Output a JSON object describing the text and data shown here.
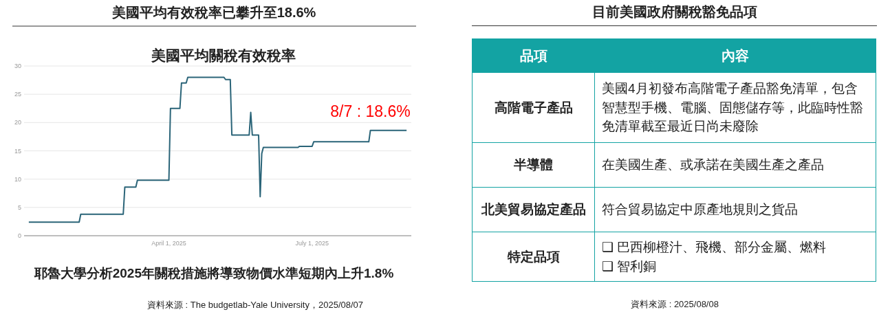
{
  "chart_data": [
    {
      "type": "line",
      "title": "美國平均有效稅率已攀升至18.6%",
      "subtitle": "美國平均關稅有效稅率",
      "x": [
        "2025-01-02",
        "2025-02-03",
        "2025-02-04",
        "2025-03-03",
        "2025-03-04",
        "2025-03-11",
        "2025-03-12",
        "2025-04-01",
        "2025-04-02",
        "2025-04-08",
        "2025-04-09",
        "2025-04-12",
        "2025-04-13",
        "2025-05-06",
        "2025-05-07",
        "2025-05-10",
        "2025-05-11",
        "2025-05-22",
        "2025-05-23",
        "2025-05-24",
        "2025-05-28",
        "2025-05-29",
        "2025-05-30",
        "2025-05-31",
        "2025-06-22",
        "2025-06-23",
        "2025-07-01",
        "2025-07-02",
        "2025-08-06",
        "2025-08-07",
        "2025-08-30"
      ],
      "series": [
        {
          "color": "#2a6478",
          "values": [
            2.4,
            2.4,
            3.8,
            3.8,
            8.6,
            8.6,
            9.8,
            9.8,
            22.5,
            22.5,
            27.0,
            27.0,
            28.0,
            28.0,
            27.6,
            27.6,
            17.8,
            17.8,
            21.8,
            17.8,
            17.8,
            6.9,
            14.5,
            15.6,
            15.6,
            15.8,
            15.8,
            16.6,
            16.6,
            18.6,
            18.6
          ]
        }
      ],
      "xlim": [
        "2024-12-30",
        "2025-09-02"
      ],
      "xticks": [
        {
          "value": "2025-04-01",
          "label": "April 1, 2025"
        },
        {
          "value": "2025-07-01",
          "label": "July 1, 2025"
        }
      ],
      "ylim": [
        0,
        30
      ],
      "yticks": [
        0,
        5,
        10,
        15,
        20,
        25,
        30
      ],
      "grid": "y",
      "marker": "none",
      "line_style": "solid",
      "annotations": [
        {
          "text": "8/7 : 18.6%",
          "x": "2025-08-07",
          "y": 18.6
        },
        "耶魯大學分析2025年關稅措施將導致物價水準短期內上升1.8%",
        "資料來源 : The budgetlab-Yale University，2025/08/07"
      ]
    },
    {
      "type": "other",
      "title": "目前美國政府關稅豁免品項",
      "cell_labels": [
        [
          "品項",
          "內容"
        ],
        [
          "高階電子產品",
          "美國4月初發布高階電子產品豁免清單，包含智慧型手機、電腦、固態儲存等，此臨時性豁免清單截至最近日尚未廢除"
        ],
        [
          "半導體",
          "在美國生產、或承諾在美國生產之產品"
        ],
        [
          "北美貿易協定產品",
          "符合貿易協定中原產地規則之貨品"
        ],
        [
          "特定品項",
          "❑ 巴西柳橙汁、飛機、部分金屬、燃料\n❑ 智利銅"
        ]
      ],
      "annotations": [
        "資料來源 : 2025/08/08"
      ]
    }
  ]
}
